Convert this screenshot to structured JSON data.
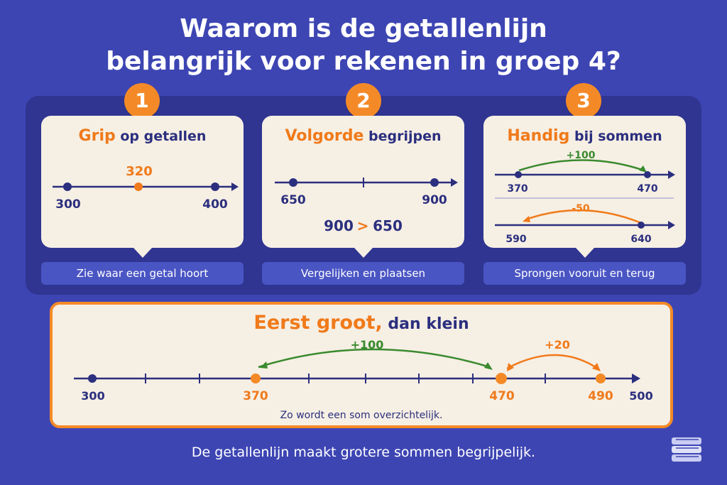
{
  "title": {
    "line1": "Waarom is de getallenlijn",
    "line2": "belangrijk voor rekenen in groep 4?"
  },
  "colors": {
    "background": "#3d45b3",
    "accent": "#f48a27",
    "navy": "#2b2f7e",
    "green": "#3a8a2e",
    "card": "#f6efe4"
  },
  "cards": [
    {
      "number": "1",
      "head_highlight": "Grip",
      "head_rest": "op getallen",
      "caption": "Zie waar een getal hoort",
      "line": {
        "left": "300",
        "middle": "320",
        "right": "400"
      }
    },
    {
      "number": "2",
      "head_highlight": "Volgorde",
      "head_rest": "begrijpen",
      "caption": "Vergelijken en plaatsen",
      "line": {
        "left": "650",
        "right": "900"
      },
      "comparison": {
        "a": "900",
        "op": ">",
        "b": "650"
      }
    },
    {
      "number": "3",
      "head_highlight": "Handig",
      "head_rest": "bij sommen",
      "caption": "Sprongen vooruit en terug",
      "jump1": {
        "label": "+100",
        "from": "370",
        "to": "470"
      },
      "jump2": {
        "label": "-50",
        "from": "590",
        "to": "640"
      }
    }
  ],
  "bottom": {
    "head_highlight": "Eerst groot,",
    "head_rest": "dan klein",
    "ticks": {
      "t300": "300",
      "t370": "370",
      "t470": "470",
      "t490": "490",
      "t500": "500"
    },
    "jump_big": "+100",
    "jump_small": "+20",
    "caption": "Zo wordt een som overzichtelijk."
  },
  "footer": "De getallenlijn maakt grotere sommen begrijpelijk.",
  "icons": {
    "bottom_right": "book-stack-icon"
  }
}
